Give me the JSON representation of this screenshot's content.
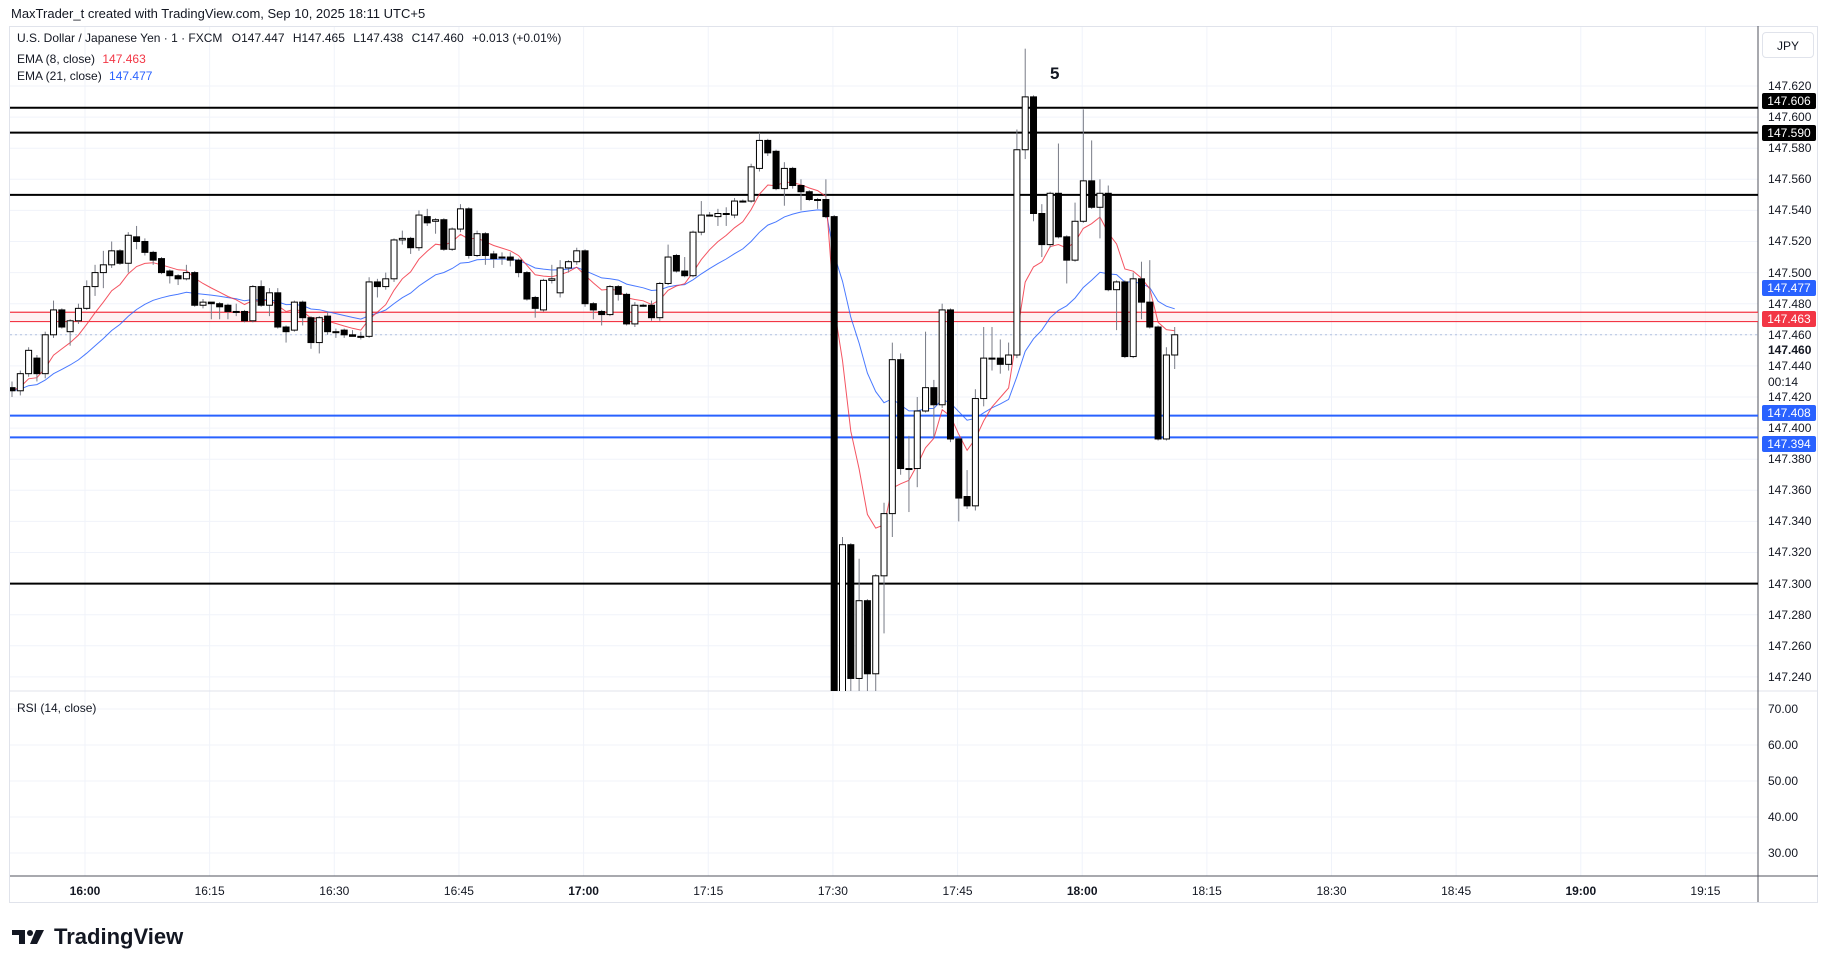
{
  "credit": "MaxTrader_t created with TradingView.com, Sep 10, 2025 18:11 UTC+5",
  "symbol": {
    "name": "U.S. Dollar / Japanese Yen · 1 · FXCM",
    "open": "O147.447",
    "high": "H147.465",
    "low": "L147.438",
    "close": "C147.460",
    "change": "+0.013 (+0.01%)"
  },
  "indicators": {
    "ema8": {
      "label": "EMA (8, close)",
      "value": "147.463",
      "color": "#f23645"
    },
    "ema21": {
      "label": "EMA (21, close)",
      "value": "147.477",
      "color": "#2962ff"
    },
    "rsi": {
      "label": "RSI (14, close)"
    }
  },
  "currency_button": "JPY",
  "annotation": "5",
  "price_axis": {
    "ticks": [
      "147.620",
      "147.600",
      "147.580",
      "147.560",
      "147.540",
      "147.520",
      "147.500",
      "147.480",
      "147.460",
      "147.440",
      "147.420",
      "147.400",
      "147.380",
      "147.360",
      "147.340",
      "147.320",
      "147.300",
      "147.280",
      "147.260",
      "147.240"
    ],
    "tick_values": [
      147.62,
      147.6,
      147.58,
      147.56,
      147.54,
      147.52,
      147.5,
      147.48,
      147.46,
      147.44,
      147.42,
      147.4,
      147.38,
      147.36,
      147.34,
      147.32,
      147.3,
      147.28,
      147.26,
      147.24
    ],
    "labels": [
      {
        "text": "147.606",
        "bg": "#000000"
      },
      {
        "text": "147.590",
        "bg": "#000000"
      },
      {
        "text": "147.477",
        "bg": "#2962ff"
      },
      {
        "text": "147.463",
        "bg": "#f23645"
      },
      {
        "text": "147.408",
        "bg": "#2962ff"
      },
      {
        "text": "147.394",
        "bg": "#2962ff"
      }
    ],
    "last_price": "147.460",
    "countdown": "00:14"
  },
  "rsi_axis": {
    "ticks": [
      "70.00",
      "60.00",
      "50.00",
      "40.00",
      "30.00"
    ],
    "tick_values": [
      70,
      60,
      50,
      40,
      30
    ]
  },
  "time_axis": [
    {
      "t": "16:00",
      "bold": true
    },
    {
      "t": "16:15"
    },
    {
      "t": "16:30"
    },
    {
      "t": "16:45"
    },
    {
      "t": "17:00",
      "bold": true
    },
    {
      "t": "17:15"
    },
    {
      "t": "17:30"
    },
    {
      "t": "17:45"
    },
    {
      "t": "18:00",
      "bold": true
    },
    {
      "t": "18:15"
    },
    {
      "t": "18:30"
    },
    {
      "t": "18:45"
    },
    {
      "t": "19:00",
      "bold": true
    },
    {
      "t": "19:15"
    }
  ],
  "logo": "TradingView",
  "chart_data": {
    "type": "candlestick",
    "first_bar_time": "15:51",
    "interval_minutes": 1,
    "ylim": [
      147.22,
      147.645
    ],
    "horizontal_lines": [
      {
        "price": 147.606,
        "color": "#000000"
      },
      {
        "price": 147.59,
        "color": "#000000"
      },
      {
        "price": 147.55,
        "color": "#000000"
      },
      {
        "price": 147.3,
        "color": "#000000"
      },
      {
        "price": 147.408,
        "color": "#2962ff"
      },
      {
        "price": 147.394,
        "color": "#2962ff"
      }
    ],
    "zone": {
      "top": 147.4745,
      "bottom": 147.4685,
      "color": "#f23645"
    },
    "ohlc": [
      [
        147.426,
        147.43,
        147.42,
        147.424
      ],
      [
        147.424,
        147.437,
        147.421,
        147.435
      ],
      [
        147.435,
        147.452,
        147.433,
        147.45
      ],
      [
        147.445,
        147.447,
        147.43,
        147.435
      ],
      [
        147.435,
        147.462,
        147.432,
        147.46
      ],
      [
        147.46,
        147.482,
        147.458,
        147.476
      ],
      [
        147.476,
        147.477,
        147.464,
        147.465
      ],
      [
        147.462,
        147.47,
        147.453,
        147.469
      ],
      [
        147.469,
        147.48,
        147.467,
        147.477
      ],
      [
        147.477,
        147.495,
        147.476,
        147.491
      ],
      [
        147.491,
        147.505,
        147.485,
        147.5
      ],
      [
        147.5,
        147.514,
        147.49,
        147.505
      ],
      [
        147.505,
        147.52,
        147.503,
        147.514
      ],
      [
        147.514,
        147.515,
        147.505,
        147.506
      ],
      [
        147.506,
        147.526,
        147.5,
        147.524
      ],
      [
        147.523,
        147.53,
        147.515,
        147.52
      ],
      [
        147.52,
        147.522,
        147.511,
        147.513
      ],
      [
        147.513,
        147.514,
        147.505,
        147.508
      ],
      [
        147.509,
        147.51,
        147.499,
        147.5
      ],
      [
        147.501,
        147.502,
        147.493,
        147.498
      ],
      [
        147.498,
        147.499,
        147.492,
        147.496
      ],
      [
        147.496,
        147.505,
        147.495,
        147.5
      ],
      [
        147.5,
        147.501,
        147.478,
        147.479
      ],
      [
        147.479,
        147.483,
        147.477,
        147.481
      ],
      [
        147.481,
        147.481,
        147.47,
        147.48
      ],
      [
        147.48,
        147.481,
        147.47,
        147.478
      ],
      [
        147.479,
        147.48,
        147.47,
        147.475
      ],
      [
        147.475,
        147.48,
        147.472,
        147.475
      ],
      [
        147.475,
        147.476,
        147.468,
        147.469
      ],
      [
        147.469,
        147.492,
        147.468,
        147.491
      ],
      [
        147.491,
        147.495,
        147.478,
        147.479
      ],
      [
        147.479,
        147.49,
        147.472,
        147.487
      ],
      [
        147.487,
        147.49,
        147.464,
        147.465
      ],
      [
        147.465,
        147.466,
        147.455,
        147.462
      ],
      [
        147.463,
        147.482,
        147.462,
        147.481
      ],
      [
        147.481,
        147.482,
        147.466,
        147.471
      ],
      [
        147.471,
        147.472,
        147.451,
        147.455
      ],
      [
        147.455,
        147.472,
        147.448,
        147.471
      ],
      [
        147.472,
        147.475,
        147.46,
        147.462
      ],
      [
        147.462,
        147.464,
        147.458,
        147.462
      ],
      [
        147.463,
        147.464,
        147.458,
        147.46
      ],
      [
        147.46,
        147.463,
        147.459,
        147.459
      ],
      [
        147.459,
        147.462,
        147.457,
        147.459
      ],
      [
        147.459,
        147.497,
        147.458,
        147.494
      ],
      [
        147.494,
        147.496,
        147.484,
        147.491
      ],
      [
        147.491,
        147.5,
        147.489,
        147.496
      ],
      [
        147.496,
        147.522,
        147.494,
        147.521
      ],
      [
        147.521,
        147.527,
        147.518,
        147.522
      ],
      [
        147.522,
        147.523,
        147.512,
        147.516
      ],
      [
        147.516,
        147.54,
        147.514,
        147.537
      ],
      [
        147.536,
        147.541,
        147.53,
        147.532
      ],
      [
        147.533,
        147.535,
        147.525,
        147.534
      ],
      [
        147.534,
        147.535,
        147.514,
        147.515
      ],
      [
        147.515,
        147.529,
        147.514,
        147.528
      ],
      [
        147.528,
        147.544,
        147.526,
        147.541
      ],
      [
        147.541,
        147.542,
        147.509,
        147.511
      ],
      [
        147.511,
        147.527,
        147.51,
        147.525
      ],
      [
        147.525,
        147.526,
        147.505,
        147.511
      ],
      [
        147.512,
        147.514,
        147.503,
        147.509
      ],
      [
        147.51,
        147.513,
        147.505,
        147.51
      ],
      [
        147.51,
        147.513,
        147.504,
        147.508
      ],
      [
        147.508,
        147.509,
        147.497,
        147.5
      ],
      [
        147.5,
        147.501,
        147.482,
        147.483
      ],
      [
        147.484,
        147.485,
        147.471,
        147.477
      ],
      [
        147.476,
        147.496,
        147.475,
        147.495
      ],
      [
        147.495,
        147.505,
        147.493,
        147.496
      ],
      [
        147.487,
        147.508,
        147.484,
        147.503
      ],
      [
        147.503,
        147.508,
        147.5,
        147.507
      ],
      [
        147.507,
        147.516,
        147.505,
        147.514
      ],
      [
        147.514,
        147.515,
        147.478,
        147.48
      ],
      [
        147.48,
        147.481,
        147.47,
        147.476
      ],
      [
        147.475,
        147.476,
        147.466,
        147.473
      ],
      [
        147.473,
        147.492,
        147.472,
        147.491
      ],
      [
        147.491,
        147.492,
        147.482,
        147.486
      ],
      [
        147.486,
        147.487,
        147.466,
        147.467
      ],
      [
        147.467,
        147.481,
        147.465,
        147.479
      ],
      [
        147.479,
        147.48,
        147.478,
        147.479
      ],
      [
        147.479,
        147.482,
        147.469,
        147.471
      ],
      [
        147.471,
        147.494,
        147.469,
        147.493
      ],
      [
        147.493,
        147.518,
        147.492,
        147.51
      ],
      [
        147.511,
        147.512,
        147.5,
        147.501
      ],
      [
        147.501,
        147.51,
        147.497,
        147.498
      ],
      [
        147.498,
        147.527,
        147.497,
        147.526
      ],
      [
        147.526,
        147.546,
        147.524,
        147.537
      ],
      [
        147.537,
        147.539,
        147.536,
        147.537
      ],
      [
        147.536,
        147.541,
        147.53,
        147.538
      ],
      [
        147.538,
        147.542,
        147.53,
        147.538
      ],
      [
        147.537,
        147.548,
        147.535,
        147.546
      ],
      [
        147.546,
        147.547,
        147.545,
        147.546
      ],
      [
        147.546,
        147.57,
        147.545,
        147.568
      ],
      [
        147.567,
        147.59,
        147.565,
        147.585
      ],
      [
        147.585,
        147.586,
        147.575,
        147.577
      ],
      [
        147.578,
        147.579,
        147.553,
        147.554
      ],
      [
        147.554,
        147.571,
        147.543,
        147.567
      ],
      [
        147.567,
        147.568,
        147.554,
        147.556
      ],
      [
        147.556,
        147.56,
        147.54,
        147.552
      ],
      [
        147.552,
        147.553,
        147.546,
        147.547
      ],
      [
        147.547,
        147.548,
        147.541,
        147.547
      ],
      [
        147.547,
        147.56,
        147.535,
        147.536
      ],
      [
        147.536,
        147.537,
        147.22,
        147.226
      ],
      [
        147.226,
        147.33,
        147.22,
        147.325
      ],
      [
        147.325,
        147.326,
        147.22,
        147.239
      ],
      [
        147.239,
        147.316,
        147.23,
        147.289
      ],
      [
        147.289,
        147.29,
        147.23,
        147.242
      ],
      [
        147.242,
        147.306,
        147.228,
        147.305
      ],
      [
        147.305,
        147.352,
        147.268,
        147.345
      ],
      [
        147.345,
        147.455,
        147.33,
        147.444
      ],
      [
        147.444,
        147.448,
        147.37,
        147.374
      ],
      [
        147.374,
        147.395,
        147.346,
        147.374
      ],
      [
        147.374,
        147.42,
        147.362,
        147.411
      ],
      [
        147.411,
        147.462,
        147.41,
        147.426
      ],
      [
        147.426,
        147.431,
        147.394,
        147.415
      ],
      [
        147.415,
        147.48,
        147.413,
        147.476
      ],
      [
        147.476,
        147.477,
        147.391,
        147.393
      ],
      [
        147.393,
        147.394,
        147.34,
        147.355
      ],
      [
        147.356,
        147.373,
        147.348,
        147.35
      ],
      [
        147.35,
        147.425,
        147.347,
        147.419
      ],
      [
        147.419,
        147.465,
        147.414,
        147.445
      ],
      [
        147.445,
        147.465,
        147.437,
        147.445
      ],
      [
        147.445,
        147.457,
        147.435,
        147.441
      ],
      [
        147.441,
        147.455,
        147.437,
        147.447
      ],
      [
        147.447,
        147.592,
        147.445,
        147.579
      ],
      [
        147.579,
        147.644,
        147.573,
        147.613
      ],
      [
        147.613,
        147.614,
        147.533,
        147.538
      ],
      [
        147.538,
        147.544,
        147.51,
        147.518
      ],
      [
        147.518,
        147.552,
        147.516,
        147.551
      ],
      [
        147.551,
        147.583,
        147.522,
        147.523
      ],
      [
        147.523,
        147.524,
        147.493,
        147.508
      ],
      [
        147.508,
        147.545,
        147.507,
        147.533
      ],
      [
        147.533,
        147.605,
        147.532,
        147.559
      ],
      [
        147.559,
        147.585,
        147.541,
        147.542
      ],
      [
        147.542,
        147.56,
        147.522,
        147.551
      ],
      [
        147.551,
        147.556,
        147.488,
        147.489
      ],
      [
        147.489,
        147.495,
        147.463,
        147.494
      ],
      [
        147.494,
        147.495,
        147.445,
        147.446
      ],
      [
        147.446,
        147.5,
        147.445,
        147.496
      ],
      [
        147.496,
        147.507,
        147.47,
        147.481
      ],
      [
        147.481,
        147.508,
        147.464,
        147.465
      ],
      [
        147.465,
        147.466,
        147.392,
        147.393
      ],
      [
        147.393,
        147.452,
        147.392,
        147.447
      ],
      [
        147.447,
        147.465,
        147.438,
        147.46
      ]
    ]
  }
}
